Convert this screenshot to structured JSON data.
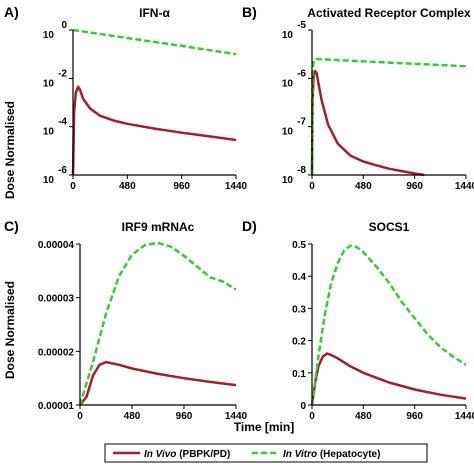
{
  "figure": {
    "ylabel": "Dose Normalised",
    "xlabel": "Time [min]"
  },
  "legend": {
    "entries": [
      {
        "name": "In Vivo (PBPK/PD)",
        "name_italic": "In Vivo",
        "name_rest": " (PBPK/PD)",
        "color": "#a0202c",
        "dash": "solid"
      },
      {
        "name": "In Vitro (Hepatocyte)",
        "name_italic": "In Vitro",
        "name_rest": " (Hepatocyte)",
        "color": "#33cc33",
        "dash": "dashed"
      }
    ]
  },
  "chart_data": [
    {
      "panel": "A)",
      "title": "IFN-α",
      "type": "line",
      "yscale": "log",
      "xlim": [
        0,
        1440
      ],
      "xticks": [
        0,
        480,
        960,
        1440
      ],
      "ylim_exp": [
        -6,
        0
      ],
      "ytick_exps": [
        0,
        -2,
        -4,
        -6
      ],
      "series": [
        {
          "name": "In Vivo (PBPK/PD)",
          "x": [
            0,
            10,
            25,
            45,
            60,
            90,
            150,
            240,
            360,
            480,
            720,
            960,
            1200,
            1440
          ],
          "y_exp": [
            -6.0,
            -3.4,
            -2.6,
            -2.35,
            -2.45,
            -2.85,
            -3.25,
            -3.55,
            -3.75,
            -3.88,
            -4.08,
            -4.25,
            -4.4,
            -4.55
          ]
        },
        {
          "name": "In Vitro (Hepatocyte)",
          "x": [
            0,
            480,
            960,
            1440
          ],
          "y_exp": [
            0.0,
            -0.33,
            -0.66,
            -1.0
          ]
        }
      ]
    },
    {
      "panel": "B)",
      "title": "Activated Receptor Complex",
      "type": "line",
      "yscale": "log",
      "xlim": [
        0,
        1440
      ],
      "xticks": [
        0,
        480,
        960,
        1440
      ],
      "ylim_exp": [
        -8,
        -5
      ],
      "ytick_exps": [
        -5,
        -6,
        -7,
        -8
      ],
      "series": [
        {
          "name": "In Vivo (PBPK/PD)",
          "x": [
            0,
            5,
            15,
            30,
            45,
            60,
            90,
            150,
            240,
            360,
            480,
            600,
            720,
            840,
            960,
            1050
          ],
          "y_exp": [
            -8.0,
            -6.5,
            -5.95,
            -5.85,
            -5.9,
            -6.1,
            -6.45,
            -6.95,
            -7.35,
            -7.6,
            -7.72,
            -7.8,
            -7.87,
            -7.92,
            -7.97,
            -8.0
          ]
        },
        {
          "name": "In Vitro (Hepatocyte)",
          "x": [
            0,
            5,
            20,
            40,
            480,
            960,
            1440
          ],
          "y_exp": [
            -8.0,
            -5.8,
            -5.62,
            -5.6,
            -5.65,
            -5.7,
            -5.75
          ]
        }
      ]
    },
    {
      "panel": "C)",
      "title": "IRF9 mRNAc",
      "type": "line",
      "yscale": "linear",
      "xlim": [
        0,
        1440
      ],
      "xticks": [
        0,
        480,
        960,
        1440
      ],
      "ylim": [
        1e-05,
        4e-05
      ],
      "yticks": [
        1e-05,
        2e-05,
        3e-05,
        4e-05
      ],
      "ytick_labels": [
        "0.00001",
        "0.00002",
        "0.00003",
        "0.00004"
      ],
      "series": [
        {
          "name": "In Vivo (PBPK/PD)",
          "x": [
            0,
            60,
            120,
            180,
            240,
            360,
            480,
            720,
            960,
            1200,
            1440
          ],
          "y": [
            1e-05,
            1.15e-05,
            1.55e-05,
            1.75e-05,
            1.8e-05,
            1.75e-05,
            1.68e-05,
            1.58e-05,
            1.5e-05,
            1.43e-05,
            1.37e-05
          ]
        },
        {
          "name": "In Vitro (Hepatocyte)",
          "x": [
            0,
            120,
            240,
            360,
            480,
            600,
            720,
            840,
            960,
            1080,
            1200,
            1320,
            1440
          ],
          "y": [
            1e-05,
            1.8e-05,
            2.7e-05,
            3.4e-05,
            3.8e-05,
            3.98e-05,
            4.02e-05,
            3.95e-05,
            3.78e-05,
            3.58e-05,
            3.38e-05,
            3.3e-05,
            3.15e-05
          ]
        }
      ]
    },
    {
      "panel": "D)",
      "title": "SOCS1",
      "type": "line",
      "yscale": "linear",
      "xlim": [
        0,
        1440
      ],
      "xticks": [
        0,
        480,
        960,
        1440
      ],
      "ylim": [
        0,
        0.5
      ],
      "yticks": [
        0,
        0.1,
        0.2,
        0.3,
        0.4,
        0.5
      ],
      "ytick_labels": [
        "0",
        "0.1",
        "0.2",
        "0.3",
        "0.4",
        "0.5"
      ],
      "series": [
        {
          "name": "In Vivo (PBPK/PD)",
          "x": [
            0,
            30,
            60,
            100,
            140,
            180,
            240,
            360,
            480,
            720,
            960,
            1200,
            1440
          ],
          "y": [
            0,
            0.07,
            0.12,
            0.15,
            0.16,
            0.155,
            0.145,
            0.12,
            0.1,
            0.07,
            0.048,
            0.032,
            0.02
          ]
        },
        {
          "name": "In Vitro (Hepatocyte)",
          "x": [
            0,
            60,
            120,
            180,
            240,
            300,
            360,
            420,
            480,
            600,
            720,
            840,
            960,
            1080,
            1200,
            1320,
            1440
          ],
          "y": [
            0,
            0.15,
            0.28,
            0.38,
            0.44,
            0.48,
            0.495,
            0.49,
            0.475,
            0.43,
            0.38,
            0.32,
            0.27,
            0.22,
            0.18,
            0.15,
            0.125
          ]
        }
      ]
    }
  ]
}
